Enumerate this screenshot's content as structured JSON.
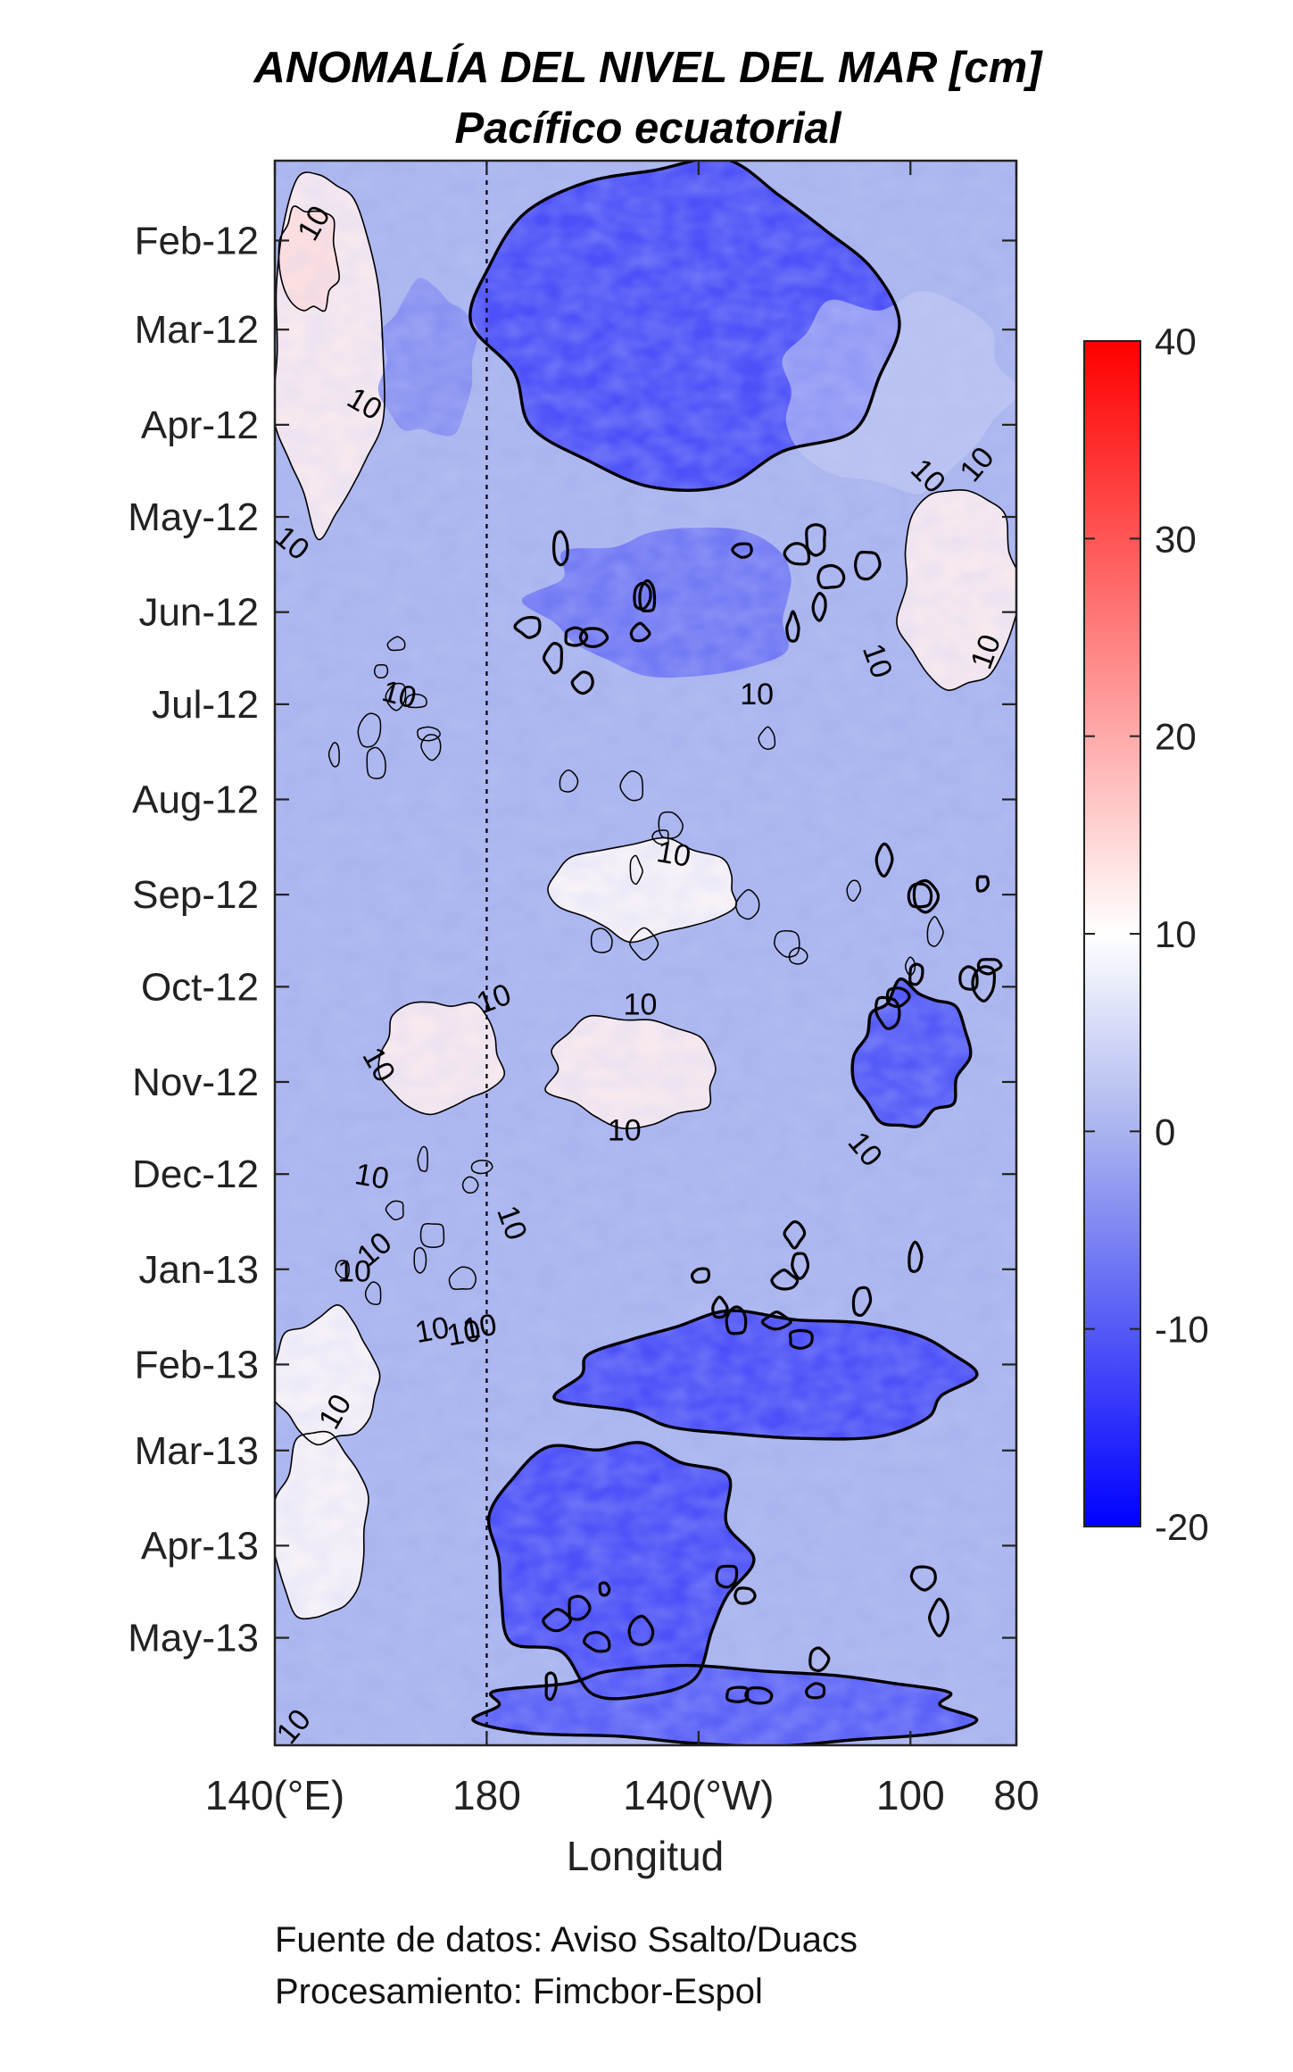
{
  "chart_data": {
    "type": "heatmap",
    "title": "ANOMALÍA DEL NIVEL DEL MAR [cm]",
    "subtitle": "Pacífico ecuatorial",
    "xlabel": "Longitud",
    "x_ticks": [
      {
        "value": 140,
        "label": "140(°E)"
      },
      {
        "value": 180,
        "label": "180"
      },
      {
        "value": 220,
        "label": "140(°W)"
      },
      {
        "value": 260,
        "label": "100"
      },
      {
        "value": 280,
        "label": "80"
      }
    ],
    "xlim": [
      140,
      280
    ],
    "y_ticks": [
      "Feb-12",
      "Mar-12",
      "Apr-12",
      "May-12",
      "Jun-12",
      "Jul-12",
      "Aug-12",
      "Sep-12",
      "Oct-12",
      "Nov-12",
      "Dec-12",
      "Jan-13",
      "Feb-13",
      "Mar-13",
      "Apr-13",
      "May-13"
    ],
    "ylim": [
      "2012-01-06",
      "2013-06-05"
    ],
    "y_reversed": true,
    "reference_line": {
      "value": 180,
      "style": "dotted"
    },
    "colorbar": {
      "min": -20,
      "max": 40,
      "ticks": [
        "40",
        "30",
        "20",
        "10",
        "0",
        "-10",
        "-20"
      ],
      "colors": {
        "-20": "#0000ff",
        "0": "#a9b3ee",
        "10": "#ffffff",
        "40": "#ff0000"
      }
    },
    "contours": [
      {
        "level": "10",
        "style": "thin"
      },
      {
        "level": "-10",
        "style": "thick"
      }
    ],
    "contour_labels": [
      "10",
      "10",
      "10",
      "10",
      "10",
      "10",
      "10",
      "10",
      "10",
      "10",
      "10",
      "10",
      "10",
      "10",
      "10",
      "10",
      "10",
      "10",
      "10",
      "10",
      "10",
      "10",
      "10",
      "10"
    ],
    "regions": [
      {
        "name": "warm",
        "lon": [
          140,
          160
        ],
        "t": [
          "2012-01-10",
          "2012-05-05"
        ],
        "value": 12
      },
      {
        "name": "warm",
        "lon": [
          141,
          152
        ],
        "t": [
          "2012-01-20",
          "2012-02-25"
        ],
        "value": 14
      },
      {
        "name": "cool",
        "lon": [
          181,
          255
        ],
        "t": [
          "2012-01-08",
          "2012-04-18"
        ],
        "value": -12
      },
      {
        "name": "cool",
        "lon": [
          160,
          178
        ],
        "t": [
          "2012-02-15",
          "2012-04-05"
        ],
        "value": -4
      },
      {
        "name": "near-zero",
        "lon": [
          235,
          280
        ],
        "t": [
          "2012-02-20",
          "2012-04-20"
        ],
        "value": 3
      },
      {
        "name": "warm",
        "lon": [
          258,
          280
        ],
        "t": [
          "2012-04-20",
          "2012-06-25"
        ],
        "value": 12
      },
      {
        "name": "cool",
        "lon": [
          190,
          240
        ],
        "t": [
          "2012-05-05",
          "2012-06-20"
        ],
        "value": -7
      },
      {
        "name": "warm",
        "lon": [
          193,
          228
        ],
        "t": [
          "2012-08-15",
          "2012-09-15"
        ],
        "value": 11
      },
      {
        "name": "warm",
        "lon": [
          160,
          183
        ],
        "t": [
          "2012-10-05",
          "2012-11-10"
        ],
        "value": 12
      },
      {
        "name": "warm",
        "lon": [
          192,
          225
        ],
        "t": [
          "2012-10-10",
          "2012-11-15"
        ],
        "value": 12
      },
      {
        "name": "cool",
        "lon": [
          250,
          270
        ],
        "t": [
          "2012-10-01",
          "2012-11-15"
        ],
        "value": -11
      },
      {
        "name": "cool",
        "lon": [
          195,
          270
        ],
        "t": [
          "2013-01-15",
          "2013-02-25"
        ],
        "value": -12
      },
      {
        "name": "warm",
        "lon": [
          140,
          160
        ],
        "t": [
          "2013-01-15",
          "2013-02-25"
        ],
        "value": 11
      },
      {
        "name": "warm",
        "lon": [
          140,
          158
        ],
        "t": [
          "2013-02-25",
          "2013-04-25"
        ],
        "value": 11
      },
      {
        "name": "cool",
        "lon": [
          180,
          230
        ],
        "t": [
          "2013-02-25",
          "2013-05-15"
        ],
        "value": -12
      },
      {
        "name": "cool",
        "lon": [
          180,
          272
        ],
        "t": [
          "2013-05-10",
          "2013-06-05"
        ],
        "value": -10
      }
    ]
  },
  "footer": {
    "source": "Fuente de datos: Aviso Ssalto/Duacs",
    "processing": "Procesamiento: Fimcbor-Espol"
  }
}
